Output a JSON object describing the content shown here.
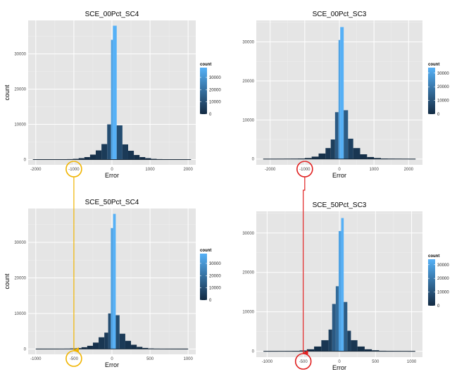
{
  "chart_data": [
    {
      "type": "bar",
      "title": "SCE_00Pct_SC4",
      "xlabel": "Error",
      "ylabel": "count",
      "xlim": [
        -2200,
        2200
      ],
      "ylim": [
        -1500,
        39500
      ],
      "xticks": [
        -2000,
        -1000,
        0,
        1000,
        2000
      ],
      "xtick_labels": [
        "-2000",
        "-1000",
        "0",
        "1000",
        "2000"
      ],
      "yticks": [
        0,
        10000,
        20000,
        30000
      ],
      "ytick_labels": [
        "0",
        "10000",
        "20000",
        "30000"
      ],
      "grid": true,
      "legend": {
        "title": "count",
        "placement": "right",
        "ticks": [
          0,
          10000,
          20000,
          30000
        ],
        "tick_labels": [
          "0",
          "10000",
          "20000",
          "30000"
        ],
        "max": 38000
      },
      "bars": [
        [
          -2075,
          -1925,
          20
        ],
        [
          -1925,
          -1775,
          30
        ],
        [
          -1775,
          -1625,
          40
        ],
        [
          -1625,
          -1475,
          50
        ],
        [
          -1475,
          -1325,
          70
        ],
        [
          -1325,
          -1175,
          90
        ],
        [
          -1175,
          -1025,
          120
        ],
        [
          -1025,
          -875,
          200
        ],
        [
          -875,
          -725,
          400
        ],
        [
          -725,
          -575,
          700
        ],
        [
          -575,
          -425,
          1400
        ],
        [
          -425,
          -275,
          2600
        ],
        [
          -275,
          -125,
          4400
        ],
        [
          -125,
          -25,
          10000
        ],
        [
          -25,
          25,
          34000
        ],
        [
          25,
          125,
          38000
        ],
        [
          125,
          275,
          9700
        ],
        [
          275,
          425,
          4300
        ],
        [
          425,
          575,
          2500
        ],
        [
          575,
          725,
          1300
        ],
        [
          725,
          875,
          700
        ],
        [
          875,
          1025,
          400
        ],
        [
          1025,
          1175,
          200
        ],
        [
          1175,
          1325,
          120
        ],
        [
          1325,
          1475,
          90
        ],
        [
          1475,
          1625,
          70
        ],
        [
          1625,
          1775,
          50
        ],
        [
          1775,
          1925,
          30
        ],
        [
          1925,
          2075,
          20
        ]
      ]
    },
    {
      "type": "bar",
      "title": "SCE_00Pct_SC3",
      "xlabel": "Error",
      "ylabel": "",
      "xlim": [
        -2400,
        2400
      ],
      "ylim": [
        -1500,
        35500
      ],
      "xticks": [
        -2000,
        -1000,
        0,
        1000,
        2000
      ],
      "xtick_labels": [
        "-2000",
        "-1000",
        "0",
        "1000",
        "2000"
      ],
      "yticks": [
        0,
        10000,
        20000,
        30000
      ],
      "ytick_labels": [
        "0",
        "10000",
        "20000",
        "30000"
      ],
      "grid": true,
      "legend": {
        "title": "count",
        "placement": "right",
        "ticks": [
          0,
          10000,
          20000,
          30000
        ],
        "tick_labels": [
          "0",
          "10000",
          "20000",
          "30000"
        ],
        "max": 34000
      },
      "bars": [
        [
          -2200,
          -2000,
          20
        ],
        [
          -2000,
          -1800,
          30
        ],
        [
          -1800,
          -1600,
          40
        ],
        [
          -1600,
          -1400,
          60
        ],
        [
          -1400,
          -1200,
          80
        ],
        [
          -1200,
          -1000,
          120
        ],
        [
          -1000,
          -800,
          250
        ],
        [
          -800,
          -600,
          600
        ],
        [
          -600,
          -400,
          1400
        ],
        [
          -400,
          -250,
          2800
        ],
        [
          -250,
          -125,
          5000
        ],
        [
          -125,
          -25,
          12000
        ],
        [
          -25,
          25,
          30500
        ],
        [
          25,
          125,
          33800
        ],
        [
          125,
          250,
          12500
        ],
        [
          250,
          400,
          5200
        ],
        [
          400,
          600,
          2800
        ],
        [
          600,
          800,
          1200
        ],
        [
          800,
          1000,
          500
        ],
        [
          1000,
          1200,
          250
        ],
        [
          1200,
          1400,
          120
        ],
        [
          1400,
          1600,
          80
        ],
        [
          1600,
          1800,
          60
        ],
        [
          1800,
          2000,
          40
        ],
        [
          2000,
          2200,
          20
        ]
      ]
    },
    {
      "type": "bar",
      "title": "SCE_50Pct_SC4",
      "xlabel": "Error",
      "ylabel": "count",
      "xlim": [
        -1100,
        1100
      ],
      "ylim": [
        -1500,
        39500
      ],
      "xticks": [
        -1000,
        -500,
        0,
        500,
        1000
      ],
      "xtick_labels": [
        "-1000",
        "-500",
        "0",
        "500",
        "1000"
      ],
      "yticks": [
        0,
        10000,
        20000,
        30000
      ],
      "ytick_labels": [
        "0",
        "10000",
        "20000",
        "30000"
      ],
      "grid": true,
      "legend": {
        "title": "count",
        "placement": "right",
        "ticks": [
          0,
          10000,
          20000,
          30000
        ],
        "tick_labels": [
          "0",
          "10000",
          "20000",
          "30000"
        ],
        "max": 38000
      },
      "bars": [
        [
          -1000,
          -925,
          20
        ],
        [
          -925,
          -850,
          30
        ],
        [
          -850,
          -775,
          40
        ],
        [
          -775,
          -700,
          50
        ],
        [
          -700,
          -625,
          70
        ],
        [
          -625,
          -550,
          100
        ],
        [
          -550,
          -475,
          150
        ],
        [
          -475,
          -400,
          250
        ],
        [
          -400,
          -325,
          500
        ],
        [
          -325,
          -250,
          900
        ],
        [
          -250,
          -175,
          1800
        ],
        [
          -175,
          -100,
          3300
        ],
        [
          -100,
          -50,
          4600
        ],
        [
          -50,
          -15,
          10000
        ],
        [
          -15,
          15,
          34000
        ],
        [
          15,
          50,
          38000
        ],
        [
          50,
          100,
          9500
        ],
        [
          100,
          175,
          4300
        ],
        [
          175,
          250,
          2300
        ],
        [
          250,
          325,
          1200
        ],
        [
          325,
          400,
          600
        ],
        [
          400,
          475,
          300
        ],
        [
          475,
          550,
          150
        ],
        [
          550,
          625,
          100
        ],
        [
          625,
          700,
          70
        ],
        [
          700,
          775,
          50
        ],
        [
          775,
          850,
          30
        ],
        [
          850,
          925,
          20
        ],
        [
          925,
          1000,
          10
        ]
      ]
    },
    {
      "type": "bar",
      "title": "SCE_50Pct_SC3",
      "xlabel": "Error",
      "ylabel": "",
      "xlim": [
        -1150,
        1150
      ],
      "ylim": [
        -1500,
        35500
      ],
      "xticks": [
        -1000,
        -500,
        0,
        500,
        1000
      ],
      "xtick_labels": [
        "-1000",
        "-500",
        "0",
        "500",
        "1000"
      ],
      "yticks": [
        0,
        10000,
        20000,
        30000
      ],
      "ytick_labels": [
        "0",
        "10000",
        "20000",
        "30000"
      ],
      "grid": true,
      "legend": {
        "title": "count",
        "placement": "right",
        "ticks": [
          0,
          10000,
          20000,
          30000
        ],
        "tick_labels": [
          "0",
          "10000",
          "20000",
          "30000"
        ],
        "max": 34000
      },
      "bars": [
        [
          -1050,
          -950,
          20
        ],
        [
          -950,
          -850,
          30
        ],
        [
          -850,
          -750,
          40
        ],
        [
          -750,
          -650,
          60
        ],
        [
          -650,
          -550,
          100
        ],
        [
          -550,
          -450,
          200
        ],
        [
          -450,
          -350,
          500
        ],
        [
          -350,
          -250,
          1200
        ],
        [
          -250,
          -150,
          2800
        ],
        [
          -150,
          -100,
          5500
        ],
        [
          -100,
          -50,
          12000
        ],
        [
          -50,
          -10,
          16500
        ],
        [
          -10,
          25,
          30500
        ],
        [
          25,
          60,
          33800
        ],
        [
          60,
          110,
          12500
        ],
        [
          110,
          160,
          5200
        ],
        [
          160,
          250,
          2800
        ],
        [
          250,
          350,
          1200
        ],
        [
          350,
          450,
          500
        ],
        [
          450,
          550,
          250
        ],
        [
          550,
          650,
          120
        ],
        [
          650,
          750,
          80
        ],
        [
          750,
          850,
          60
        ],
        [
          850,
          950,
          40
        ],
        [
          950,
          1050,
          20
        ]
      ]
    }
  ],
  "annotations": [
    {
      "color": "#f0b400",
      "from_panel": 0,
      "to_panel": 2,
      "from_x": -1000,
      "to_x": -500
    },
    {
      "color": "#e02020",
      "from_panel": 1,
      "to_panel": 3,
      "from_x": -1000,
      "to_x": -500
    }
  ]
}
